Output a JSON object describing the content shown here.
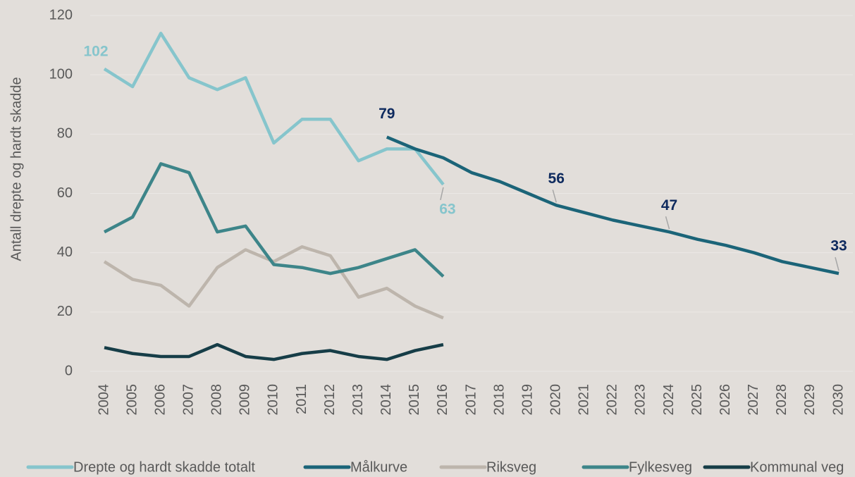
{
  "chart_data": {
    "type": "line",
    "y_label": "Antall drepte og hardt skadde",
    "categories": [
      "2004",
      "2005",
      "2006",
      "2007",
      "2008",
      "2009",
      "2010",
      "2011",
      "2012",
      "2013",
      "2014",
      "2015",
      "2016",
      "2017",
      "2018",
      "2019",
      "2020",
      "2021",
      "2022",
      "2023",
      "2024",
      "2025",
      "2026",
      "2027",
      "2028",
      "2029",
      "2030"
    ],
    "ylim": [
      0,
      120
    ],
    "yticks": [
      0,
      20,
      40,
      60,
      80,
      100,
      120
    ],
    "grid": true,
    "legend": "bottom",
    "series": [
      {
        "name": "Drepte og hardt skadde totalt",
        "color": "#86c5cc",
        "label_color": "#86c5cc",
        "values": [
          102,
          96,
          114,
          99,
          95,
          99,
          77,
          85,
          85,
          71,
          75,
          75,
          63,
          null,
          null,
          null,
          null,
          null,
          null,
          null,
          null,
          null,
          null,
          null,
          null,
          null,
          null
        ],
        "value_labels": [
          "102",
          null,
          null,
          null,
          null,
          null,
          null,
          null,
          null,
          null,
          null,
          null,
          "63",
          null,
          null,
          null,
          null,
          null,
          null,
          null,
          null,
          null,
          null,
          null,
          null,
          null,
          null
        ]
      },
      {
        "name": "Målkurve",
        "color": "#1b6478",
        "label_color": "#0e2a5e",
        "values": [
          null,
          null,
          null,
          null,
          null,
          null,
          null,
          null,
          null,
          null,
          79,
          75,
          72,
          67,
          64,
          60,
          56,
          53.5,
          51,
          49,
          47,
          44.5,
          42.5,
          40,
          37,
          35,
          33
        ],
        "value_labels": [
          null,
          null,
          null,
          null,
          null,
          null,
          null,
          null,
          null,
          null,
          "79",
          null,
          null,
          null,
          null,
          null,
          "56",
          null,
          null,
          null,
          "47",
          null,
          null,
          null,
          null,
          null,
          "33"
        ]
      },
      {
        "name": "Riksveg",
        "color": "#bdb5ac",
        "values": [
          37,
          31,
          29,
          22,
          35,
          41,
          37,
          42,
          39,
          25,
          28,
          22,
          18,
          null,
          null,
          null,
          null,
          null,
          null,
          null,
          null,
          null,
          null,
          null,
          null,
          null,
          null
        ]
      },
      {
        "name": "Fylkesveg",
        "color": "#3d8589",
        "values": [
          47,
          52,
          70,
          67,
          47,
          49,
          36,
          35,
          33,
          35,
          38,
          41,
          32,
          null,
          null,
          null,
          null,
          null,
          null,
          null,
          null,
          null,
          null,
          null,
          null,
          null,
          null
        ]
      },
      {
        "name": "Kommunal veg",
        "color": "#163d47",
        "values": [
          8,
          6,
          5,
          5,
          9,
          5,
          4,
          6,
          7,
          5,
          4,
          7,
          9,
          null,
          null,
          null,
          null,
          null,
          null,
          null,
          null,
          null,
          null,
          null,
          null,
          null,
          null
        ]
      }
    ]
  }
}
